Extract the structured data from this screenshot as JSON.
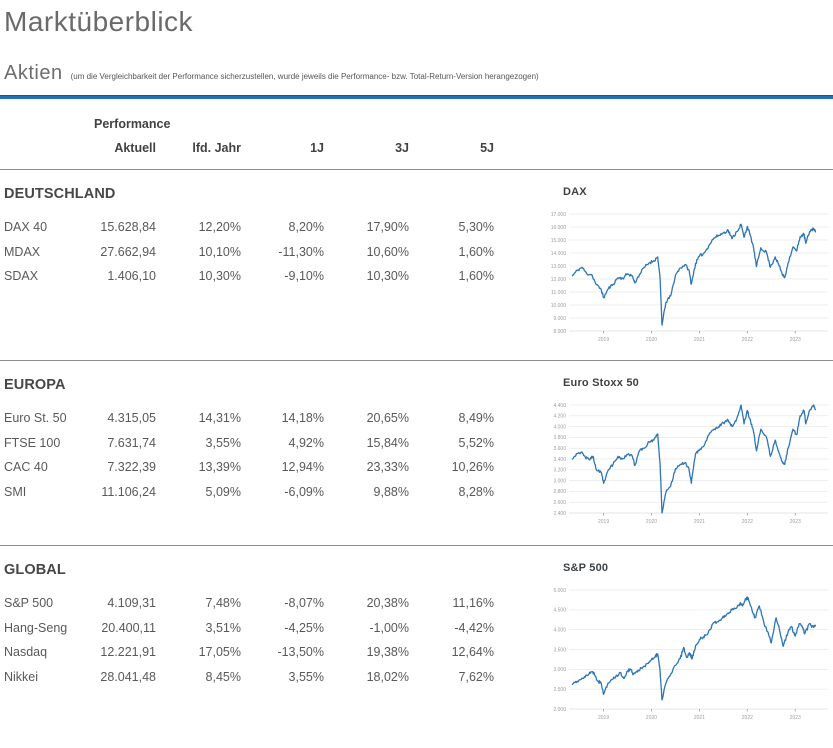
{
  "header": {
    "title": "Marktüberblick",
    "section_title": "Aktien",
    "note": "(um die Vergleichbarkeit der Performance sicherzustellen, wurde jeweils die Performance- bzw. Total-Return-Version herangezogen)"
  },
  "colors": {
    "accent_blue": "#2272b8",
    "line_blue": "#2e75b6",
    "grid_gray": "#e9e9e9"
  },
  "table": {
    "group_header": "Performance",
    "columns": [
      "Aktuell",
      "lfd. Jahr",
      "1J",
      "3J",
      "5J"
    ],
    "sections": [
      {
        "title": "DEUTSCHLAND",
        "rows": [
          {
            "name": "DAX 40",
            "values": [
              "15.628,84",
              "12,20%",
              "8,20%",
              "17,90%",
              "5,30%"
            ]
          },
          {
            "name": "MDAX",
            "values": [
              "27.662,94",
              "10,10%",
              "-11,30%",
              "10,60%",
              "1,60%"
            ]
          },
          {
            "name": "SDAX",
            "values": [
              "1.406,10",
              "10,30%",
              "-9,10%",
              "10,30%",
              "1,60%"
            ]
          }
        ]
      },
      {
        "title": "EUROPA",
        "rows": [
          {
            "name": "Euro St. 50",
            "values": [
              "4.315,05",
              "14,31%",
              "14,18%",
              "20,65%",
              "8,49%"
            ]
          },
          {
            "name": "FTSE 100",
            "values": [
              "7.631,74",
              "3,55%",
              "4,92%",
              "15,84%",
              "5,52%"
            ]
          },
          {
            "name": "CAC 40",
            "values": [
              "7.322,39",
              "13,39%",
              "12,94%",
              "23,33%",
              "10,26%"
            ]
          },
          {
            "name": "SMI",
            "values": [
              "11.106,24",
              "5,09%",
              "-6,09%",
              "9,88%",
              "8,28%"
            ]
          }
        ]
      },
      {
        "title": "GLOBAL",
        "rows": [
          {
            "name": "S&P 500",
            "values": [
              "4.109,31",
              "7,48%",
              "-8,07%",
              "20,38%",
              "11,16%"
            ]
          },
          {
            "name": "Hang-Seng",
            "values": [
              "20.400,11",
              "3,51%",
              "-4,25%",
              "-1,00%",
              "-4,42%"
            ]
          },
          {
            "name": "Nasdaq",
            "values": [
              "12.221,91",
              "17,05%",
              "-13,50%",
              "19,38%",
              "12,64%"
            ]
          },
          {
            "name": "Nikkei",
            "values": [
              "28.041,48",
              "8,45%",
              "3,55%",
              "18,02%",
              "7,62%"
            ]
          }
        ]
      }
    ]
  },
  "chart_data": [
    {
      "type": "line",
      "title": "DAX",
      "line_color": "#2e75b6",
      "grid": true,
      "xlim": [
        2018.3,
        2023.62
      ],
      "ylim": [
        8000,
        17000
      ],
      "ytick_values": [
        17000,
        16000,
        15000,
        14000,
        13000,
        12000,
        11000,
        10000,
        9000,
        8000
      ],
      "ytick_labels": [
        "17.000",
        "16.000",
        "15.000",
        "14.000",
        "13.000",
        "12.000",
        "11.000",
        "10.000",
        "9.000",
        "8.000"
      ],
      "xtick_values": [
        2019,
        2020,
        2021,
        2022,
        2023
      ],
      "xtick_labels": [
        "2019",
        "2020",
        "2021",
        "2022",
        "2023"
      ],
      "series": [
        {
          "name": "DAX",
          "points": [
            [
              2018.35,
              12250
            ],
            [
              2018.45,
              12650
            ],
            [
              2018.55,
              12900
            ],
            [
              2018.65,
              12400
            ],
            [
              2018.75,
              12350
            ],
            [
              2018.85,
              11550
            ],
            [
              2018.95,
              11200
            ],
            [
              2019.0,
              10550
            ],
            [
              2019.1,
              11250
            ],
            [
              2019.2,
              11600
            ],
            [
              2019.3,
              12100
            ],
            [
              2019.4,
              12050
            ],
            [
              2019.5,
              12400
            ],
            [
              2019.6,
              12250
            ],
            [
              2019.65,
              11700
            ],
            [
              2019.75,
              12350
            ],
            [
              2019.85,
              12900
            ],
            [
              2019.95,
              13250
            ],
            [
              2020.05,
              13400
            ],
            [
              2020.13,
              13700
            ],
            [
              2020.18,
              12000
            ],
            [
              2020.22,
              8450
            ],
            [
              2020.3,
              10200
            ],
            [
              2020.4,
              10700
            ],
            [
              2020.5,
              12300
            ],
            [
              2020.6,
              12850
            ],
            [
              2020.7,
              13100
            ],
            [
              2020.78,
              12700
            ],
            [
              2020.83,
              11600
            ],
            [
              2020.92,
              13200
            ],
            [
              2021.0,
              13750
            ],
            [
              2021.1,
              14000
            ],
            [
              2021.2,
              14600
            ],
            [
              2021.3,
              15150
            ],
            [
              2021.4,
              15350
            ],
            [
              2021.5,
              15550
            ],
            [
              2021.6,
              15750
            ],
            [
              2021.68,
              15100
            ],
            [
              2021.78,
              15650
            ],
            [
              2021.87,
              16200
            ],
            [
              2021.93,
              15200
            ],
            [
              2022.0,
              16050
            ],
            [
              2022.05,
              15500
            ],
            [
              2022.13,
              14400
            ],
            [
              2022.19,
              12950
            ],
            [
              2022.28,
              14400
            ],
            [
              2022.4,
              14050
            ],
            [
              2022.48,
              12900
            ],
            [
              2022.58,
              13700
            ],
            [
              2022.65,
              13150
            ],
            [
              2022.73,
              12350
            ],
            [
              2022.78,
              12100
            ],
            [
              2022.85,
              13250
            ],
            [
              2022.95,
              14450
            ],
            [
              2023.03,
              14150
            ],
            [
              2023.1,
              15250
            ],
            [
              2023.18,
              15450
            ],
            [
              2023.22,
              14750
            ],
            [
              2023.3,
              15650
            ],
            [
              2023.38,
              15900
            ],
            [
              2023.42,
              15630
            ]
          ]
        }
      ]
    },
    {
      "type": "line",
      "title": "Euro Stoxx 50",
      "line_color": "#2e75b6",
      "grid": true,
      "xlim": [
        2018.3,
        2023.62
      ],
      "ylim": [
        2400,
        4400
      ],
      "ytick_values": [
        4400,
        4200,
        4000,
        3800,
        3600,
        3400,
        3200,
        3000,
        2800,
        2600,
        2400
      ],
      "ytick_labels": [
        "4.400",
        "4.200",
        "4.000",
        "3.800",
        "3.600",
        "3.400",
        "3.200",
        "3.000",
        "2.800",
        "2.600",
        "2.400"
      ],
      "xtick_values": [
        2019,
        2020,
        2021,
        2022,
        2023
      ],
      "xtick_labels": [
        "2019",
        "2020",
        "2021",
        "2022",
        "2023"
      ],
      "series": [
        {
          "name": "Euro Stoxx 50",
          "points": [
            [
              2018.35,
              3400
            ],
            [
              2018.45,
              3500
            ],
            [
              2018.55,
              3530
            ],
            [
              2018.62,
              3430
            ],
            [
              2018.7,
              3390
            ],
            [
              2018.78,
              3450
            ],
            [
              2018.85,
              3200
            ],
            [
              2018.95,
              3150
            ],
            [
              2019.0,
              2950
            ],
            [
              2019.1,
              3200
            ],
            [
              2019.2,
              3300
            ],
            [
              2019.3,
              3450
            ],
            [
              2019.4,
              3400
            ],
            [
              2019.5,
              3480
            ],
            [
              2019.6,
              3450
            ],
            [
              2019.65,
              3280
            ],
            [
              2019.75,
              3550
            ],
            [
              2019.85,
              3600
            ],
            [
              2019.95,
              3720
            ],
            [
              2020.05,
              3750
            ],
            [
              2020.13,
              3865
            ],
            [
              2020.18,
              3300
            ],
            [
              2020.22,
              2400
            ],
            [
              2020.3,
              2780
            ],
            [
              2020.4,
              2900
            ],
            [
              2020.5,
              3220
            ],
            [
              2020.6,
              3300
            ],
            [
              2020.7,
              3330
            ],
            [
              2020.78,
              3230
            ],
            [
              2020.83,
              2950
            ],
            [
              2020.92,
              3500
            ],
            [
              2021.0,
              3560
            ],
            [
              2021.1,
              3650
            ],
            [
              2021.2,
              3850
            ],
            [
              2021.3,
              3950
            ],
            [
              2021.4,
              4000
            ],
            [
              2021.5,
              4070
            ],
            [
              2021.6,
              4120
            ],
            [
              2021.68,
              4000
            ],
            [
              2021.78,
              4150
            ],
            [
              2021.87,
              4400
            ],
            [
              2021.93,
              4050
            ],
            [
              2022.0,
              4300
            ],
            [
              2022.05,
              4150
            ],
            [
              2022.13,
              3900
            ],
            [
              2022.19,
              3550
            ],
            [
              2022.28,
              3950
            ],
            [
              2022.4,
              3800
            ],
            [
              2022.48,
              3450
            ],
            [
              2022.58,
              3750
            ],
            [
              2022.65,
              3550
            ],
            [
              2022.73,
              3350
            ],
            [
              2022.78,
              3300
            ],
            [
              2022.85,
              3600
            ],
            [
              2022.95,
              3950
            ],
            [
              2023.03,
              3850
            ],
            [
              2023.1,
              4200
            ],
            [
              2023.18,
              4300
            ],
            [
              2023.22,
              4050
            ],
            [
              2023.3,
              4300
            ],
            [
              2023.38,
              4400
            ],
            [
              2023.42,
              4315
            ]
          ]
        }
      ]
    },
    {
      "type": "line",
      "title": "S&P 500",
      "line_color": "#2e75b6",
      "grid": true,
      "xlim": [
        2018.3,
        2023.62
      ],
      "ylim": [
        2000,
        5000
      ],
      "ytick_values": [
        5000,
        4500,
        4000,
        3500,
        3000,
        2500,
        2000
      ],
      "ytick_labels": [
        "5.000",
        "4.500",
        "4.000",
        "3.500",
        "3.000",
        "2.500",
        "2.000"
      ],
      "xtick_values": [
        2019,
        2020,
        2021,
        2022,
        2023
      ],
      "xtick_labels": [
        "2019",
        "2020",
        "2021",
        "2022",
        "2023"
      ],
      "series": [
        {
          "name": "S&P 500",
          "points": [
            [
              2018.35,
              2620
            ],
            [
              2018.45,
              2700
            ],
            [
              2018.55,
              2780
            ],
            [
              2018.65,
              2850
            ],
            [
              2018.72,
              2900
            ],
            [
              2018.8,
              2920
            ],
            [
              2018.88,
              2700
            ],
            [
              2018.95,
              2650
            ],
            [
              2019.0,
              2370
            ],
            [
              2019.08,
              2600
            ],
            [
              2019.18,
              2750
            ],
            [
              2019.28,
              2850
            ],
            [
              2019.35,
              2920
            ],
            [
              2019.42,
              2770
            ],
            [
              2019.5,
              2960
            ],
            [
              2019.58,
              2990
            ],
            [
              2019.62,
              2870
            ],
            [
              2019.72,
              2980
            ],
            [
              2019.82,
              3050
            ],
            [
              2019.92,
              3150
            ],
            [
              2020.0,
              3250
            ],
            [
              2020.08,
              3330
            ],
            [
              2020.13,
              3390
            ],
            [
              2020.18,
              2950
            ],
            [
              2020.22,
              2230
            ],
            [
              2020.3,
              2650
            ],
            [
              2020.4,
              2880
            ],
            [
              2020.5,
              3100
            ],
            [
              2020.6,
              3270
            ],
            [
              2020.67,
              3550
            ],
            [
              2020.73,
              3300
            ],
            [
              2020.8,
              3400
            ],
            [
              2020.85,
              3270
            ],
            [
              2020.92,
              3600
            ],
            [
              2021.0,
              3750
            ],
            [
              2021.08,
              3820
            ],
            [
              2021.18,
              3900
            ],
            [
              2021.28,
              4150
            ],
            [
              2021.38,
              4200
            ],
            [
              2021.48,
              4300
            ],
            [
              2021.58,
              4400
            ],
            [
              2021.68,
              4500
            ],
            [
              2021.78,
              4550
            ],
            [
              2021.85,
              4680
            ],
            [
              2021.9,
              4600
            ],
            [
              2021.97,
              4780
            ],
            [
              2022.02,
              4790
            ],
            [
              2022.1,
              4480
            ],
            [
              2022.16,
              4300
            ],
            [
              2022.25,
              4600
            ],
            [
              2022.35,
              4150
            ],
            [
              2022.42,
              3950
            ],
            [
              2022.5,
              3670
            ],
            [
              2022.6,
              4300
            ],
            [
              2022.68,
              3950
            ],
            [
              2022.75,
              3580
            ],
            [
              2022.85,
              3950
            ],
            [
              2022.92,
              4080
            ],
            [
              2023.0,
              3840
            ],
            [
              2023.08,
              4150
            ],
            [
              2023.15,
              4050
            ],
            [
              2023.2,
              3900
            ],
            [
              2023.3,
              4150
            ],
            [
              2023.35,
              4080
            ],
            [
              2023.42,
              4109
            ]
          ]
        }
      ]
    }
  ]
}
